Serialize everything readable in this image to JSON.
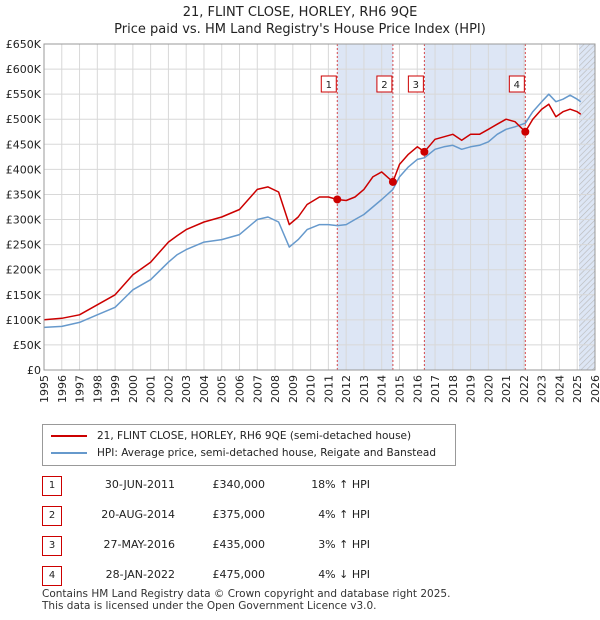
{
  "header": {
    "title": "21, FLINT CLOSE, HORLEY, RH6 9QE",
    "subtitle": "Price paid vs. HM Land Registry's House Price Index (HPI)"
  },
  "legend": {
    "property": "21, FLINT CLOSE, HORLEY, RH6 9QE (semi-detached house)",
    "hpi": "HPI: Average price, semi-detached house, Reigate and Banstead"
  },
  "transactions": [
    {
      "num": "1",
      "date": "30-JUN-2011",
      "price": "£340,000",
      "hpi": "18% ↑ HPI"
    },
    {
      "num": "2",
      "date": "20-AUG-2014",
      "price": "£375,000",
      "hpi": "4% ↑ HPI"
    },
    {
      "num": "3",
      "date": "27-MAY-2016",
      "price": "£435,000",
      "hpi": "3% ↑ HPI"
    },
    {
      "num": "4",
      "date": "28-JAN-2022",
      "price": "£475,000",
      "hpi": "4% ↓ HPI"
    }
  ],
  "footer": {
    "line1": "Contains HM Land Registry data © Crown copyright and database right 2025.",
    "line2": "This data is licensed under the Open Government Licence v3.0."
  },
  "colors": {
    "property": "#cc0000",
    "hpi": "#6699cc",
    "shade": "#dde6f5",
    "grid": "#d8d8d8"
  },
  "chart_data": {
    "type": "line",
    "title": "Price paid vs. HM Land Registry's House Price Index (HPI)",
    "xlim": [
      1995,
      2026
    ],
    "ylim": [
      0,
      650000
    ],
    "x_ticks": [
      1995,
      1996,
      1997,
      1998,
      1999,
      2000,
      2001,
      2002,
      2003,
      2004,
      2005,
      2006,
      2007,
      2008,
      2009,
      2010,
      2011,
      2012,
      2013,
      2014,
      2015,
      2016,
      2017,
      2018,
      2019,
      2020,
      2021,
      2022,
      2023,
      2024,
      2025,
      2026
    ],
    "y_ticks": [
      0,
      50000,
      100000,
      150000,
      200000,
      250000,
      300000,
      350000,
      400000,
      450000,
      500000,
      550000,
      600000,
      650000
    ],
    "y_tick_labels": [
      "£0",
      "£50K",
      "£100K",
      "£150K",
      "£200K",
      "£250K",
      "£300K",
      "£350K",
      "£400K",
      "£450K",
      "£500K",
      "£550K",
      "£600K",
      "£650K"
    ],
    "shaded_ranges": [
      [
        2011.5,
        2014.63
      ],
      [
        2016.4,
        2022.08
      ],
      [
        2025.1,
        2026
      ]
    ],
    "hatch_from": 2025.1,
    "series": [
      {
        "name": "21, FLINT CLOSE, HORLEY, RH6 9QE (semi-detached house)",
        "color": "#cc0000",
        "x": [
          1995.0,
          1996.0,
          1997.0,
          1998.0,
          1999.0,
          2000.0,
          2001.0,
          2002.0,
          2002.5,
          2003.0,
          2004.0,
          2005.0,
          2006.0,
          2007.0,
          2007.6,
          2008.2,
          2008.8,
          2009.3,
          2009.8,
          2010.5,
          2011.0,
          2011.5,
          2012.0,
          2012.5,
          2013.0,
          2013.5,
          2014.0,
          2014.63,
          2015.0,
          2015.5,
          2016.0,
          2016.4,
          2017.0,
          2017.5,
          2018.0,
          2018.5,
          2019.0,
          2019.5,
          2020.0,
          2020.5,
          2021.0,
          2021.5,
          2022.08,
          2022.5,
          2023.0,
          2023.4,
          2023.8,
          2024.2,
          2024.6,
          2025.0,
          2025.2
        ],
        "y": [
          100000,
          103000,
          110000,
          130000,
          150000,
          190000,
          215000,
          255000,
          268000,
          280000,
          295000,
          305000,
          320000,
          360000,
          365000,
          355000,
          290000,
          305000,
          330000,
          345000,
          345000,
          340000,
          338000,
          345000,
          360000,
          385000,
          395000,
          375000,
          410000,
          430000,
          445000,
          435000,
          460000,
          465000,
          470000,
          458000,
          470000,
          470000,
          480000,
          490000,
          500000,
          495000,
          475000,
          500000,
          520000,
          530000,
          505000,
          515000,
          520000,
          515000,
          510000
        ]
      },
      {
        "name": "HPI: Average price, semi-detached house, Reigate and Banstead",
        "color": "#6699cc",
        "x": [
          1995.0,
          1996.0,
          1997.0,
          1998.0,
          1999.0,
          2000.0,
          2001.0,
          2002.0,
          2002.5,
          2003.0,
          2004.0,
          2005.0,
          2006.0,
          2007.0,
          2007.6,
          2008.2,
          2008.8,
          2009.3,
          2009.8,
          2010.5,
          2011.0,
          2011.5,
          2012.0,
          2012.5,
          2013.0,
          2013.5,
          2014.0,
          2014.63,
          2015.0,
          2015.5,
          2016.0,
          2016.4,
          2017.0,
          2017.5,
          2018.0,
          2018.5,
          2019.0,
          2019.5,
          2020.0,
          2020.5,
          2021.0,
          2021.5,
          2022.08,
          2022.5,
          2023.0,
          2023.4,
          2023.8,
          2024.2,
          2024.6,
          2025.0,
          2025.2
        ],
        "y": [
          85000,
          87000,
          95000,
          110000,
          125000,
          160000,
          180000,
          215000,
          230000,
          240000,
          255000,
          260000,
          270000,
          300000,
          305000,
          295000,
          245000,
          260000,
          280000,
          290000,
          290000,
          288000,
          290000,
          300000,
          310000,
          325000,
          340000,
          360000,
          385000,
          405000,
          420000,
          423000,
          440000,
          445000,
          448000,
          440000,
          445000,
          448000,
          455000,
          470000,
          480000,
          485000,
          492000,
          515000,
          535000,
          550000,
          535000,
          540000,
          548000,
          540000,
          535000
        ]
      }
    ],
    "sale_markers": [
      {
        "label": "1",
        "x": 2011.5,
        "y": 340000
      },
      {
        "label": "2",
        "x": 2014.63,
        "y": 375000
      },
      {
        "label": "3",
        "x": 2016.4,
        "y": 435000
      },
      {
        "label": "4",
        "x": 2022.08,
        "y": 475000
      }
    ]
  }
}
